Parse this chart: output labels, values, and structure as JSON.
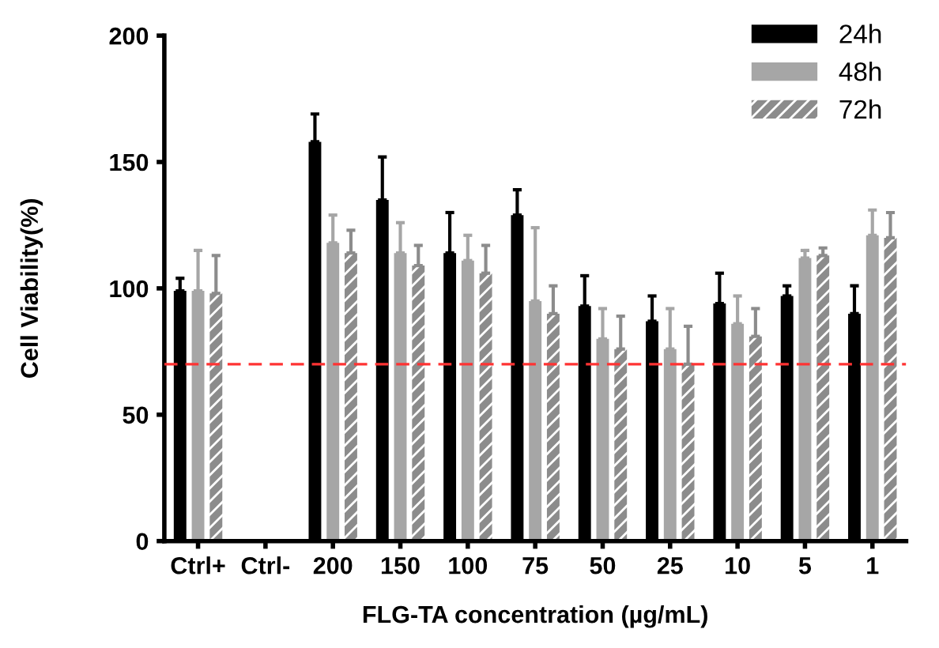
{
  "chart_data": {
    "type": "bar",
    "xlabel": "FLG-TA concentration (µg/mL)",
    "ylabel": "Cell Viability(%)",
    "categories": [
      "Ctrl+",
      "Ctrl-",
      "200",
      "150",
      "100",
      "75",
      "50",
      "25",
      "10",
      "5",
      "1"
    ],
    "series": [
      {
        "name": "24h",
        "color": "#000000",
        "values": [
          99,
          0,
          158,
          135,
          114,
          129,
          93,
          87,
          94,
          97,
          90
        ],
        "errors": [
          [
            99,
            104
          ],
          null,
          [
            158,
            169
          ],
          [
            135,
            152
          ],
          [
            114,
            130
          ],
          [
            129,
            139
          ],
          [
            93,
            105
          ],
          [
            87,
            97
          ],
          [
            94,
            106
          ],
          [
            97,
            101
          ],
          [
            90,
            101
          ]
        ]
      },
      {
        "name": "48h",
        "color": "#a6a6a6",
        "values": [
          99,
          0,
          118,
          114,
          111,
          95,
          80,
          76,
          86,
          112,
          121
        ],
        "errors": [
          [
            99,
            115
          ],
          null,
          [
            118,
            129
          ],
          [
            114,
            126
          ],
          [
            111,
            121
          ],
          [
            95,
            124
          ],
          [
            80,
            92
          ],
          [
            76,
            92
          ],
          [
            86,
            97
          ],
          [
            112,
            115
          ],
          [
            121,
            131
          ]
        ]
      },
      {
        "name": "72h",
        "color": "#8c8c8c",
        "values": [
          98,
          0,
          114,
          109,
          106,
          90,
          76,
          70,
          81,
          113,
          120
        ],
        "errors": [
          [
            98,
            113
          ],
          null,
          [
            114,
            123
          ],
          [
            109,
            117
          ],
          [
            106,
            117
          ],
          [
            90,
            101
          ],
          [
            76,
            89
          ],
          [
            70,
            85
          ],
          [
            81,
            92
          ],
          [
            113,
            116
          ],
          [
            120,
            130
          ]
        ]
      }
    ],
    "ylim": [
      0,
      200
    ],
    "yticks": [
      0,
      50,
      100,
      150,
      200
    ],
    "grid": false,
    "legend": "top right",
    "ref_lines": [
      {
        "axis": "y",
        "value": 70,
        "color": "#ff3333",
        "line_style": "dashed"
      }
    ]
  }
}
